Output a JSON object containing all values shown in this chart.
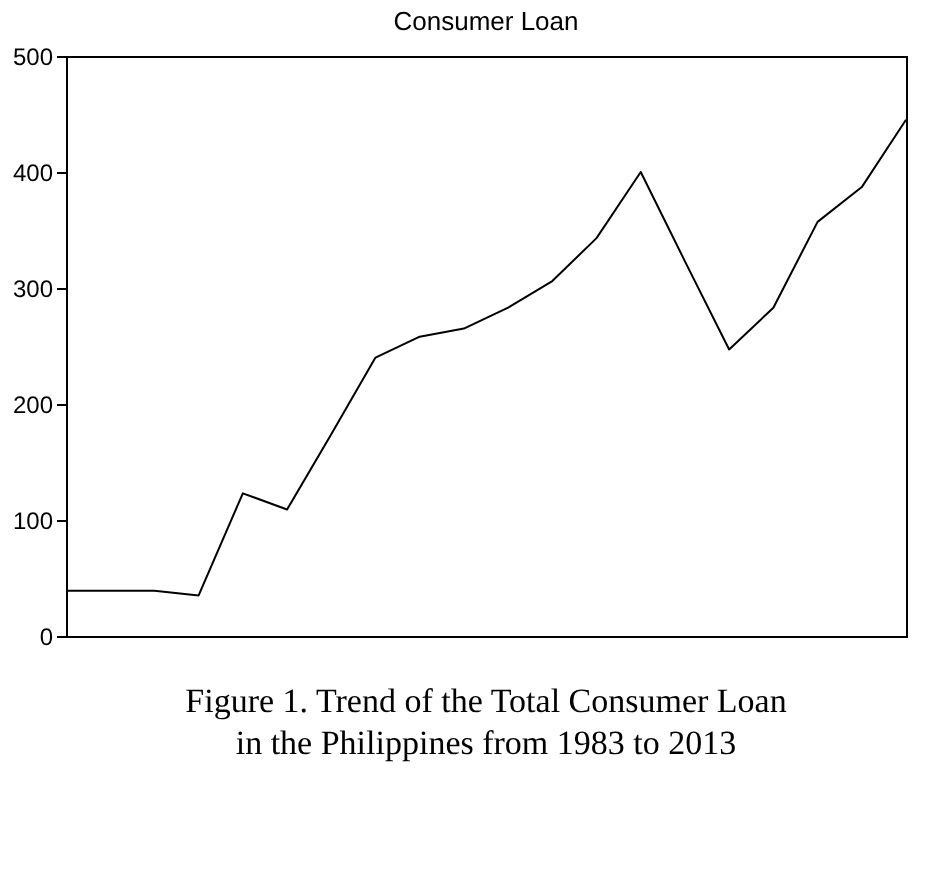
{
  "chart_data": {
    "type": "line",
    "title": "Consumer Loan",
    "categories": [
      null,
      null,
      null,
      null,
      null,
      null,
      null,
      null,
      null,
      null,
      null,
      null,
      null,
      null,
      null,
      null,
      null,
      null,
      null,
      null
    ],
    "series": [
      {
        "color": "#000000",
        "values": [
          39,
          39,
          39,
          35,
          123,
          109,
          174,
          240,
          258,
          265,
          283,
          306,
          343,
          400,
          323,
          247,
          283,
          357,
          387,
          445
        ]
      }
    ],
    "ylim": [
      0,
      500
    ],
    "yticks": [
      0,
      100,
      200,
      300,
      400,
      500
    ],
    "grid": false,
    "marker": "none",
    "line_style": "solid",
    "tick_labels": "y",
    "annotations": [
      "Figure 1. Trend of the Total Consumer Loan in the Philippines from 1983 to 2013"
    ]
  }
}
